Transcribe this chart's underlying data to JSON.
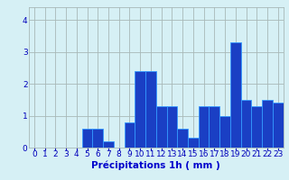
{
  "hours": [
    0,
    1,
    2,
    3,
    4,
    5,
    6,
    7,
    8,
    9,
    10,
    11,
    12,
    13,
    14,
    15,
    16,
    17,
    18,
    19,
    20,
    21,
    22,
    23
  ],
  "values": [
    0,
    0,
    0,
    0,
    0,
    0.6,
    0.6,
    0.2,
    0,
    0.8,
    2.4,
    2.4,
    1.3,
    1.3,
    0.6,
    0.3,
    1.3,
    1.3,
    1.0,
    3.3,
    1.5,
    1.3,
    1.5,
    1.4
  ],
  "bar_color": "#1a3fc4",
  "bar_edge_color": "#3399ff",
  "background_color": "#d6f0f5",
  "grid_color": "#a8b8b8",
  "xlabel": "Précipitations 1h ( mm )",
  "xlabel_color": "#0000cc",
  "tick_color": "#0000bb",
  "ylim": [
    0,
    4.4
  ],
  "yticks": [
    0,
    1,
    2,
    3,
    4
  ],
  "tick_fontsize": 6.5,
  "xlabel_fontsize": 7.5
}
